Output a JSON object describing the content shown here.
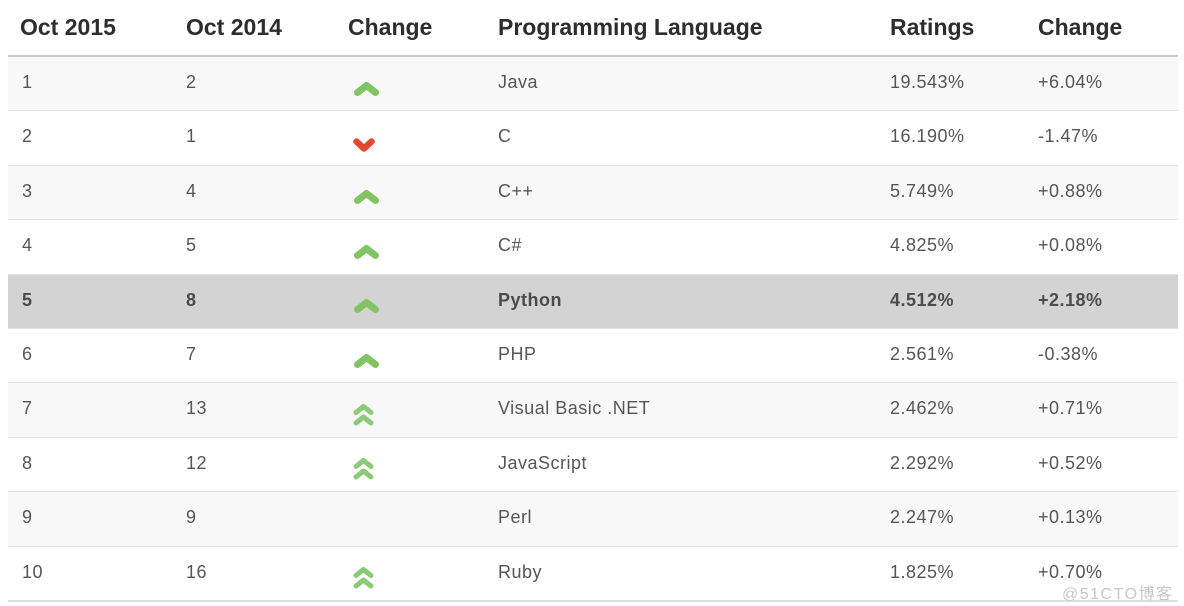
{
  "table": {
    "headers": [
      {
        "key": "pos-2015",
        "label": "Oct 2015"
      },
      {
        "key": "pos-2014",
        "label": "Oct 2014"
      },
      {
        "key": "change-arrow",
        "label": "Change"
      },
      {
        "key": "language",
        "label": "Programming Language"
      },
      {
        "key": "ratings",
        "label": "Ratings"
      },
      {
        "key": "change-pct",
        "label": "Change"
      }
    ],
    "rows": [
      {
        "pos2015": "1",
        "pos2014": "2",
        "change_icon": "up",
        "language": "Java",
        "ratings": "19.543%",
        "change": "+6.04%",
        "highlighted": false
      },
      {
        "pos2015": "2",
        "pos2014": "1",
        "change_icon": "down",
        "language": "C",
        "ratings": "16.190%",
        "change": "-1.47%",
        "highlighted": false
      },
      {
        "pos2015": "3",
        "pos2014": "4",
        "change_icon": "up",
        "language": "C++",
        "ratings": "5.749%",
        "change": "+0.88%",
        "highlighted": false
      },
      {
        "pos2015": "4",
        "pos2014": "5",
        "change_icon": "up",
        "language": "C#",
        "ratings": "4.825%",
        "change": "+0.08%",
        "highlighted": false
      },
      {
        "pos2015": "5",
        "pos2014": "8",
        "change_icon": "up",
        "language": "Python",
        "ratings": "4.512%",
        "change": "+2.18%",
        "highlighted": true
      },
      {
        "pos2015": "6",
        "pos2014": "7",
        "change_icon": "up",
        "language": "PHP",
        "ratings": "2.561%",
        "change": "-0.38%",
        "highlighted": false
      },
      {
        "pos2015": "7",
        "pos2014": "13",
        "change_icon": "double-up",
        "language": "Visual Basic .NET",
        "ratings": "2.462%",
        "change": "+0.71%",
        "highlighted": false
      },
      {
        "pos2015": "8",
        "pos2014": "12",
        "change_icon": "double-up",
        "language": "JavaScript",
        "ratings": "2.292%",
        "change": "+0.52%",
        "highlighted": false
      },
      {
        "pos2015": "9",
        "pos2014": "9",
        "change_icon": "none",
        "language": "Perl",
        "ratings": "2.247%",
        "change": "+0.13%",
        "highlighted": false
      },
      {
        "pos2015": "10",
        "pos2014": "16",
        "change_icon": "double-up",
        "language": "Ruby",
        "ratings": "1.825%",
        "change": "+0.70%",
        "highlighted": false
      }
    ]
  },
  "colors": {
    "up_arrow": "#82c463",
    "double_up_arrow": "#8dca77",
    "down_arrow": "#e24a2e",
    "highlight_bg": "#d3d3d3",
    "stripe_bg": "#f8f8f8"
  },
  "watermark": "@51CTO博客"
}
